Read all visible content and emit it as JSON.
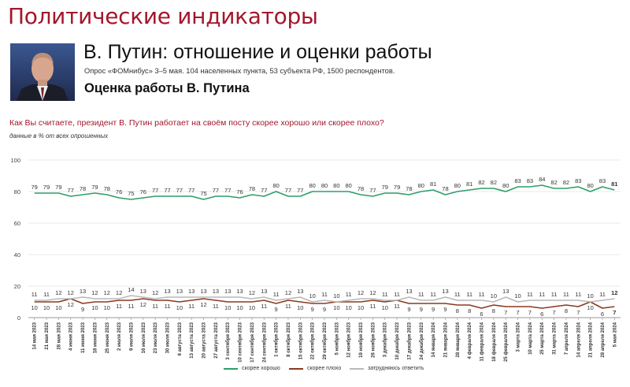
{
  "header": {
    "title": "Политические индикаторы"
  },
  "main": {
    "title": "В. Путин: отношение и оценки работы",
    "subtitle": "Опрос «ФОМнибус» 3–5 мая. 104 населенных пункта, 53 субъекта РФ, 1500 респондентов.",
    "section_title": "Оценка работы В. Путина",
    "question": "Как Вы считаете, президент В. Путин работает на своём посту скорее хорошо или скорее плохо?",
    "units": "данные в % от всех опрошенных"
  },
  "colors": {
    "good": "#2e9e6a",
    "bad": "#8b3a1e",
    "hard": "#b9b9b9",
    "header": "#a3172c"
  },
  "chart_data": {
    "type": "line",
    "ylim": [
      0,
      100
    ],
    "yticks": [
      0,
      20,
      40,
      60,
      80,
      100
    ],
    "grid": true,
    "legend_position": "bottom",
    "x": [
      "14 мая 2023",
      "21 мая 2023",
      "28 мая 2023",
      "4 июня 2023",
      "11 июня 2023",
      "18 июня 2023",
      "25 июня 2023",
      "2 июля 2023",
      "9 июля 2023",
      "16 июля 2023",
      "23 июля 2023",
      "30 июля 2023",
      "6 августа 2023",
      "13 августа 2023",
      "20 августа 2023",
      "27 августа 2023",
      "3 сентября 2023",
      "10 сентября 2023",
      "17 сентября 2023",
      "24 сентября 2023",
      "1 октября 2023",
      "8 октября 2023",
      "15 октября 2023",
      "22 октября 2023",
      "29 октября 2023",
      "5 ноября 2023",
      "12 ноября 2023",
      "19 ноября 2023",
      "26 ноября 2023",
      "3 декабря 2023",
      "10 декабря 2023",
      "17 декабря 2023",
      "24 декабря 2023",
      "14 января 2024",
      "21 января 2024",
      "28 января 2024",
      "4 февраля 2024",
      "11 февраля 2024",
      "18 февраля 2024",
      "25 февраля 2024",
      "3 марта 2024",
      "10 марта 2024",
      "25 марта 2024",
      "31 марта 2024",
      "7 апреля 2024",
      "14 апреля 2024",
      "21 апреля 2024",
      "28 апреля 2024",
      "5 мая 2024"
    ],
    "series": [
      {
        "name": "скорее хорошо",
        "color": "#2e9e6a",
        "values": [
          79,
          79,
          79,
          77,
          78,
          79,
          78,
          76,
          75,
          76,
          77,
          77,
          77,
          77,
          75,
          77,
          77,
          76,
          78,
          77,
          80,
          77,
          77,
          80,
          80,
          80,
          80,
          78,
          77,
          79,
          79,
          78,
          80,
          81,
          78,
          80,
          81,
          82,
          82,
          80,
          83,
          83,
          84,
          82,
          82,
          83,
          80,
          83,
          81
        ]
      },
      {
        "name": "скорее плохо",
        "color": "#8b3a1e",
        "values": [
          10,
          10,
          10,
          12,
          9,
          10,
          10,
          11,
          11,
          12,
          11,
          11,
          10,
          11,
          12,
          11,
          10,
          10,
          10,
          11,
          9,
          11,
          10,
          9,
          9,
          10,
          10,
          10,
          11,
          10,
          11,
          9,
          9,
          9,
          9,
          8,
          8,
          6,
          8,
          7,
          7,
          7,
          6,
          7,
          8,
          7,
          10,
          6,
          7
        ]
      },
      {
        "name": "затрудняюсь ответить",
        "color": "#b9b9b9",
        "values": [
          11,
          11,
          12,
          12,
          13,
          12,
          12,
          12,
          14,
          13,
          12,
          13,
          13,
          13,
          13,
          13,
          13,
          13,
          12,
          13,
          11,
          12,
          13,
          10,
          11,
          10,
          11,
          12,
          12,
          11,
          11,
          13,
          11,
          11,
          13,
          11,
          11,
          11,
          10,
          13,
          10,
          11,
          11,
          11,
          11,
          11,
          10,
          11,
          12
        ]
      }
    ]
  }
}
